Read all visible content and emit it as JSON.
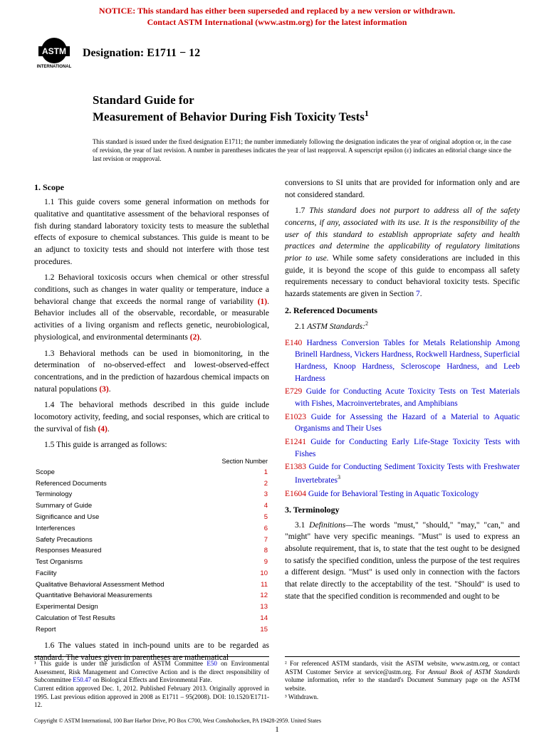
{
  "notice": {
    "line1": "NOTICE: This standard has either been superseded and replaced by a new version or withdrawn.",
    "line2": "Contact ASTM International (www.astm.org) for the latest information",
    "color": "#cc0000"
  },
  "logo": {
    "top": "INTERNATIONAL",
    "mid": "ASTM",
    "bot": "INTERNATIONAL"
  },
  "designation": "Designation: E1711 − 12",
  "title": {
    "line1": "Standard Guide for",
    "line2": "Measurement of Behavior During Fish Toxicity Tests",
    "sup": "1"
  },
  "issuance": "This standard is issued under the fixed designation E1711; the number immediately following the designation indicates the year of original adoption or, in the case of revision, the year of last revision. A number in parentheses indicates the year of last reapproval. A superscript epsilon (ε) indicates an editorial change since the last revision or reapproval.",
  "left": {
    "h1": "1. Scope",
    "p11": "1.1 This guide covers some general information on methods for qualitative and quantitative assessment of the behavioral responses of fish during standard laboratory toxicity tests to measure the sublethal effects of exposure to chemical substances. This guide is meant to be an adjunct to toxicity tests and should not interfere with those test procedures.",
    "p12a": "1.2 Behavioral toxicosis occurs when chemical or other stressful conditions, such as changes in water quality or temperature, induce a behavioral change that exceeds the normal range of variability ",
    "p12b": ". Behavior includes all of the observable, recordable, or measurable activities of a living organism and reflects genetic, neurobiological, physiological, and environmental determinants ",
    "r1": "(1)",
    "r2": "(2)",
    "p13a": "1.3 Behavioral methods can be used in biomonitoring, in the determination of no-observed-effect and lowest-observed-effect concentrations, and in the prediction of hazardous chemical impacts on natural populations ",
    "r3": "(3)",
    "p14a": "1.4 The behavioral methods described in this guide include locomotory activity, feeding, and social responses, which are critical to the survival of fish ",
    "r4": "(4)",
    "p15": "1.5 This guide is arranged as follows:",
    "toc_head": "Section Number",
    "toc": [
      {
        "t": "Scope",
        "n": "1"
      },
      {
        "t": "Referenced Documents",
        "n": "2"
      },
      {
        "t": "Terminology",
        "n": "3"
      },
      {
        "t": "Summary of Guide",
        "n": "4"
      },
      {
        "t": "Significance and Use",
        "n": "5"
      },
      {
        "t": "Interferences",
        "n": "6"
      },
      {
        "t": "Safety Precautions",
        "n": "7"
      },
      {
        "t": "Responses Measured",
        "n": "8"
      },
      {
        "t": "Test Organisms",
        "n": "9"
      },
      {
        "t": "Facility",
        "n": "10"
      },
      {
        "t": "Qualitative Behavioral Assessment Method",
        "n": "11"
      },
      {
        "t": "Quantitative Behavioral Measurements",
        "n": "12"
      },
      {
        "t": "Experimental Design",
        "n": "13"
      },
      {
        "t": "Calculation of Test Results",
        "n": "14"
      },
      {
        "t": "Report",
        "n": "15"
      }
    ],
    "p16": "1.6 The values stated in inch-pound units are to be regarded as standard. The values given in parentheses are mathematical"
  },
  "right": {
    "p_cont": "conversions to SI units that are provided for information only and are not considered standard.",
    "p17a": "1.7 ",
    "p17i": "This standard does not purport to address all of the safety concerns, if any, associated with its use. It is the responsibility of the user of this standard to establish appropriate safety and health practices and determine the applicability of regulatory limitations prior to use.",
    "p17b": " While some safety considerations are included in this guide, it is beyond the scope of this guide to encompass all safety requirements necessary to conduct behavioral toxicity tests. Specific hazards statements are given in Section ",
    "sec7": "7",
    "h2": "2. Referenced Documents",
    "p21a": "2.1 ",
    "p21i": "ASTM Standards:",
    "sup2": "2",
    "refs": [
      {
        "k": "E140",
        "t": "Hardness Conversion Tables for Metals Relationship Among Brinell Hardness, Vickers Hardness, Rockwell Hardness, Superficial Hardness, Knoop Hardness, Scleroscope Hardness, and Leeb Hardness"
      },
      {
        "k": "E729",
        "t": "Guide for Conducting Acute Toxicity Tests on Test Materials with Fishes, Macroinvertebrates, and Amphibians"
      },
      {
        "k": "E1023",
        "t": "Guide for Assessing the Hazard of a Material to Aquatic Organisms and Their Uses"
      },
      {
        "k": "E1241",
        "t": "Guide for Conducting Early Life-Stage Toxicity Tests with Fishes"
      },
      {
        "k": "E1383",
        "t": "Guide for Conducting Sediment Toxicity Tests with Freshwater Invertebrates",
        "sup": "3"
      },
      {
        "k": "E1604",
        "t": "Guide for Behavioral Testing in Aquatic Toxicology"
      }
    ],
    "h3": "3. Terminology",
    "p31a": "3.1 ",
    "p31i": "Definitions—",
    "p31b": "The words \"must,\" \"should,\" \"may,\" \"can,\" and \"might\" have very specific meanings. \"Must\" is used to express an absolute requirement, that is, to state that the test ought to be designed to satisfy the specified condition, unless the purpose of the test requires a different design. \"Must\" is used only in connection with the factors that relate directly to the acceptability of the test. \"Should\" is used to state that the specified condition is recommended and ought to be"
  },
  "footnotes": {
    "left": "¹ This guide is under the jurisdiction of ASTM Committee E50 on Environmental Assessment, Risk Management and Corrective Action and is the direct responsibility of Subcommittee E50.47 on Biological Effects and Environmental Fate.\n   Current edition approved Dec. 1, 2012. Published February 2013. Originally approved in 1995. Last previous edition approved in 2008 as E1711 – 95(2008). DOI: 10.1520/E1711-12.",
    "left_links": {
      "e50": "E50",
      "e5047": "E50.47"
    },
    "right": "² For referenced ASTM standards, visit the ASTM website, www.astm.org, or contact ASTM Customer Service at service@astm.org. For Annual Book of ASTM Standards volume information, refer to the standard's Document Summary page on the ASTM website.\n   ³ Withdrawn.",
    "right_i": "Annual Book of ASTM Standards"
  },
  "copyright": "Copyright © ASTM International, 100 Barr Harbor Drive, PO Box C700, West Conshohocken, PA 19428-2959. United States",
  "pagenum": "1",
  "colors": {
    "link": "#0000cc",
    "refnum": "#cc0000"
  }
}
